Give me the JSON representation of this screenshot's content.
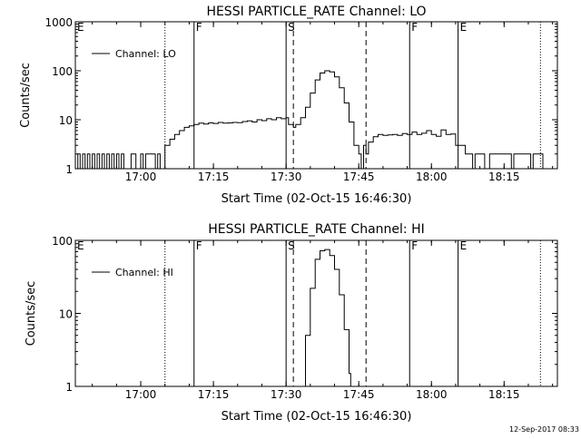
{
  "footer": {
    "timestamp": "12-Sep-2017 08:33"
  },
  "chart_data": [
    {
      "type": "line",
      "title": "HESSI PARTICLE_RATE Channel: LO",
      "xlabel": "Start Time (02-Oct-15 16:46:30)",
      "ylabel": "Counts/sec",
      "y_scale": "log",
      "ylim": [
        1,
        1000
      ],
      "xlim": [
        "16:46:30",
        "18:26:00"
      ],
      "x_ticks": [
        "17:00",
        "17:15",
        "17:30",
        "17:45",
        "18:00",
        "18:15"
      ],
      "y_ticks": [
        "1",
        "10",
        "100",
        "1000"
      ],
      "legend": {
        "label": "Channel: LO",
        "position": "top-left"
      },
      "markers": [
        {
          "time": "16:46:30",
          "label": "E",
          "style": "solid"
        },
        {
          "time": "17:11:00",
          "label": "F",
          "style": "solid"
        },
        {
          "time": "17:30:00",
          "label": "S",
          "style": "solid"
        },
        {
          "time": "18:05:30",
          "label": "E",
          "style": "solid"
        },
        {
          "time": "17:55:30",
          "label": "F",
          "style": "solid"
        },
        {
          "time": "17:31:30",
          "label": "",
          "style": "dashed"
        },
        {
          "time": "17:46:30",
          "label": "",
          "style": "dashed"
        },
        {
          "time": "17:05:00",
          "label": "",
          "style": "dotted"
        },
        {
          "time": "18:22:30",
          "label": "",
          "style": "dotted"
        }
      ],
      "series": [
        {
          "points": [
            [
              "16:46:30",
              1
            ],
            [
              "16:47:00",
              2
            ],
            [
              "16:47:30",
              1
            ],
            [
              "16:48:00",
              2
            ],
            [
              "16:48:30",
              1
            ],
            [
              "16:49:00",
              2
            ],
            [
              "16:49:30",
              1
            ],
            [
              "16:50:00",
              2
            ],
            [
              "16:50:30",
              1
            ],
            [
              "16:51:00",
              2
            ],
            [
              "16:51:30",
              1
            ],
            [
              "16:52:00",
              2
            ],
            [
              "16:52:30",
              1
            ],
            [
              "16:53:00",
              2
            ],
            [
              "16:53:30",
              1
            ],
            [
              "16:54:00",
              2
            ],
            [
              "16:54:30",
              1
            ],
            [
              "16:55:00",
              2
            ],
            [
              "16:55:30",
              1
            ],
            [
              "16:56:00",
              2
            ],
            [
              "16:56:30",
              1
            ],
            [
              "16:57:00",
              1
            ],
            [
              "16:58:00",
              2
            ],
            [
              "16:59:00",
              1
            ],
            [
              "17:00:00",
              2
            ],
            [
              "17:00:30",
              1
            ],
            [
              "17:01:00",
              2
            ],
            [
              "17:02:30",
              2
            ],
            [
              "17:03:00",
              1
            ],
            [
              "17:03:30",
              2
            ],
            [
              "17:04:00",
              1
            ],
            [
              "17:05:00",
              3
            ],
            [
              "17:06:00",
              4
            ],
            [
              "17:07:00",
              5
            ],
            [
              "17:08:00",
              6
            ],
            [
              "17:09:00",
              7
            ],
            [
              "17:10:00",
              7.5
            ],
            [
              "17:11:00",
              8
            ],
            [
              "17:12:00",
              8.5
            ],
            [
              "17:13:00",
              8.2
            ],
            [
              "17:14:00",
              8.6
            ],
            [
              "17:15:00",
              8.4
            ],
            [
              "17:16:00",
              8.8
            ],
            [
              "17:17:00",
              8.5
            ],
            [
              "17:18:00",
              8.6
            ],
            [
              "17:19:00",
              8.8
            ],
            [
              "17:20:00",
              8.7
            ],
            [
              "17:21:00",
              9.2
            ],
            [
              "17:22:00",
              9.5
            ],
            [
              "17:23:00",
              9.0
            ],
            [
              "17:24:00",
              10
            ],
            [
              "17:25:00",
              9.6
            ],
            [
              "17:26:00",
              10.5
            ],
            [
              "17:27:00",
              10
            ],
            [
              "17:28:00",
              11
            ],
            [
              "17:29:00",
              10.5
            ],
            [
              "17:30:00",
              11
            ],
            [
              "17:30:30",
              8
            ],
            [
              "17:31:30",
              7
            ],
            [
              "17:32:00",
              8
            ],
            [
              "17:33:00",
              11
            ],
            [
              "17:34:00",
              18
            ],
            [
              "17:35:00",
              35
            ],
            [
              "17:36:00",
              65
            ],
            [
              "17:37:00",
              90
            ],
            [
              "17:38:00",
              100
            ],
            [
              "17:39:00",
              95
            ],
            [
              "17:40:00",
              75
            ],
            [
              "17:41:00",
              45
            ],
            [
              "17:42:00",
              22
            ],
            [
              "17:43:00",
              9
            ],
            [
              "17:44:00",
              3
            ],
            [
              "17:45:00",
              2
            ],
            [
              "17:45:30",
              1
            ],
            [
              "17:46:00",
              3
            ],
            [
              "17:46:30",
              2
            ],
            [
              "17:47:00",
              3.5
            ],
            [
              "17:48:00",
              4.5
            ],
            [
              "17:49:00",
              5
            ],
            [
              "17:50:00",
              4.8
            ],
            [
              "17:51:00",
              4.9
            ],
            [
              "17:52:00",
              5
            ],
            [
              "17:53:00",
              4.8
            ],
            [
              "17:54:00",
              5.2
            ],
            [
              "17:55:00",
              5
            ],
            [
              "17:56:00",
              5.6
            ],
            [
              "17:57:00",
              5
            ],
            [
              "17:58:00",
              5.3
            ],
            [
              "17:59:00",
              6
            ],
            [
              "18:00:00",
              5
            ],
            [
              "18:01:00",
              4.6
            ],
            [
              "18:02:00",
              6.2
            ],
            [
              "18:03:00",
              5
            ],
            [
              "18:04:00",
              5.1
            ],
            [
              "18:05:00",
              3
            ],
            [
              "18:06:00",
              3
            ],
            [
              "18:07:00",
              2
            ],
            [
              "18:08:00",
              2
            ],
            [
              "18:08:30",
              1
            ],
            [
              "18:09:00",
              2
            ],
            [
              "18:10:00",
              2
            ],
            [
              "18:11:00",
              1
            ],
            [
              "18:12:00",
              2
            ],
            [
              "18:16:00",
              2
            ],
            [
              "18:16:30",
              1
            ],
            [
              "18:17:00",
              2
            ],
            [
              "18:20:00",
              2
            ],
            [
              "18:20:30",
              1
            ],
            [
              "18:21:00",
              2
            ],
            [
              "18:23:00",
              1
            ],
            [
              "18:24:00",
              1
            ]
          ]
        }
      ]
    },
    {
      "type": "line",
      "title": "HESSI PARTICLE_RATE Channel: HI",
      "xlabel": "Start Time (02-Oct-15 16:46:30)",
      "ylabel": "Counts/sec",
      "y_scale": "log",
      "ylim": [
        1,
        100
      ],
      "xlim": [
        "16:46:30",
        "18:26:00"
      ],
      "x_ticks": [
        "17:00",
        "17:15",
        "17:30",
        "17:45",
        "18:00",
        "18:15"
      ],
      "y_ticks": [
        "1",
        "10",
        "100"
      ],
      "legend": {
        "label": "Channel: HI",
        "position": "top-left"
      },
      "markers": [
        {
          "time": "16:46:30",
          "label": "E",
          "style": "solid"
        },
        {
          "time": "17:11:00",
          "label": "F",
          "style": "solid"
        },
        {
          "time": "17:30:00",
          "label": "S",
          "style": "solid"
        },
        {
          "time": "18:05:30",
          "label": "E",
          "style": "solid"
        },
        {
          "time": "17:55:30",
          "label": "F",
          "style": "solid"
        },
        {
          "time": "17:31:30",
          "label": "",
          "style": "dashed"
        },
        {
          "time": "17:46:30",
          "label": "",
          "style": "dashed"
        },
        {
          "time": "17:05:00",
          "label": "",
          "style": "dotted"
        },
        {
          "time": "18:22:30",
          "label": "",
          "style": "dotted"
        }
      ],
      "series": [
        {
          "points": [
            [
              "17:33:00",
              1
            ],
            [
              "17:34:00",
              5
            ],
            [
              "17:35:00",
              22
            ],
            [
              "17:36:00",
              55
            ],
            [
              "17:37:00",
              72
            ],
            [
              "17:38:00",
              75
            ],
            [
              "17:39:00",
              62
            ],
            [
              "17:40:00",
              40
            ],
            [
              "17:41:00",
              18
            ],
            [
              "17:42:00",
              6
            ],
            [
              "17:43:00",
              1.5
            ],
            [
              "17:43:20",
              1
            ]
          ]
        }
      ]
    }
  ]
}
